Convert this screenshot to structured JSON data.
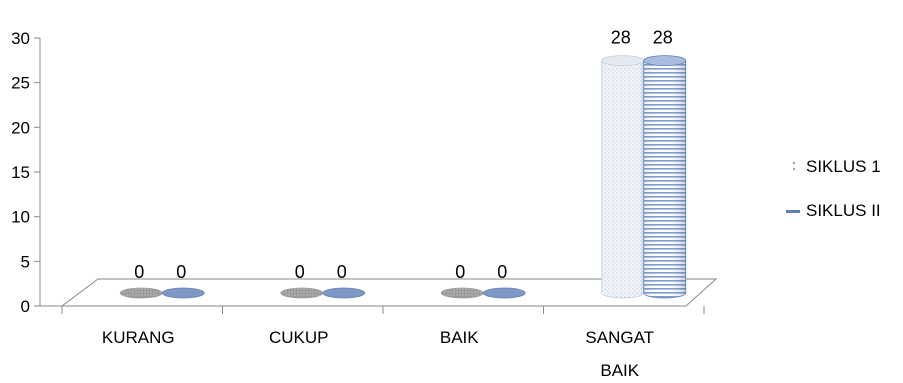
{
  "chart_data": {
    "type": "bar",
    "categories": [
      "KURANG",
      "CUKUP",
      "BAIK",
      "SANGAT BAIK"
    ],
    "series": [
      {
        "name": "SIKLUS 1",
        "values": [
          0,
          0,
          0,
          28
        ],
        "color": "#dbe3f0"
      },
      {
        "name": "SIKLUS II",
        "values": [
          0,
          0,
          0,
          28
        ],
        "color": "#8ea9d6"
      }
    ],
    "ylim": [
      0,
      30
    ],
    "yticks": [
      0,
      5,
      10,
      15,
      20,
      25,
      30
    ],
    "data_labels": true,
    "legend_position": "right",
    "grid": false,
    "style": "3d-cylinder"
  },
  "legend": {
    "items": [
      "SIKLUS 1",
      "SIKLUS II"
    ]
  }
}
